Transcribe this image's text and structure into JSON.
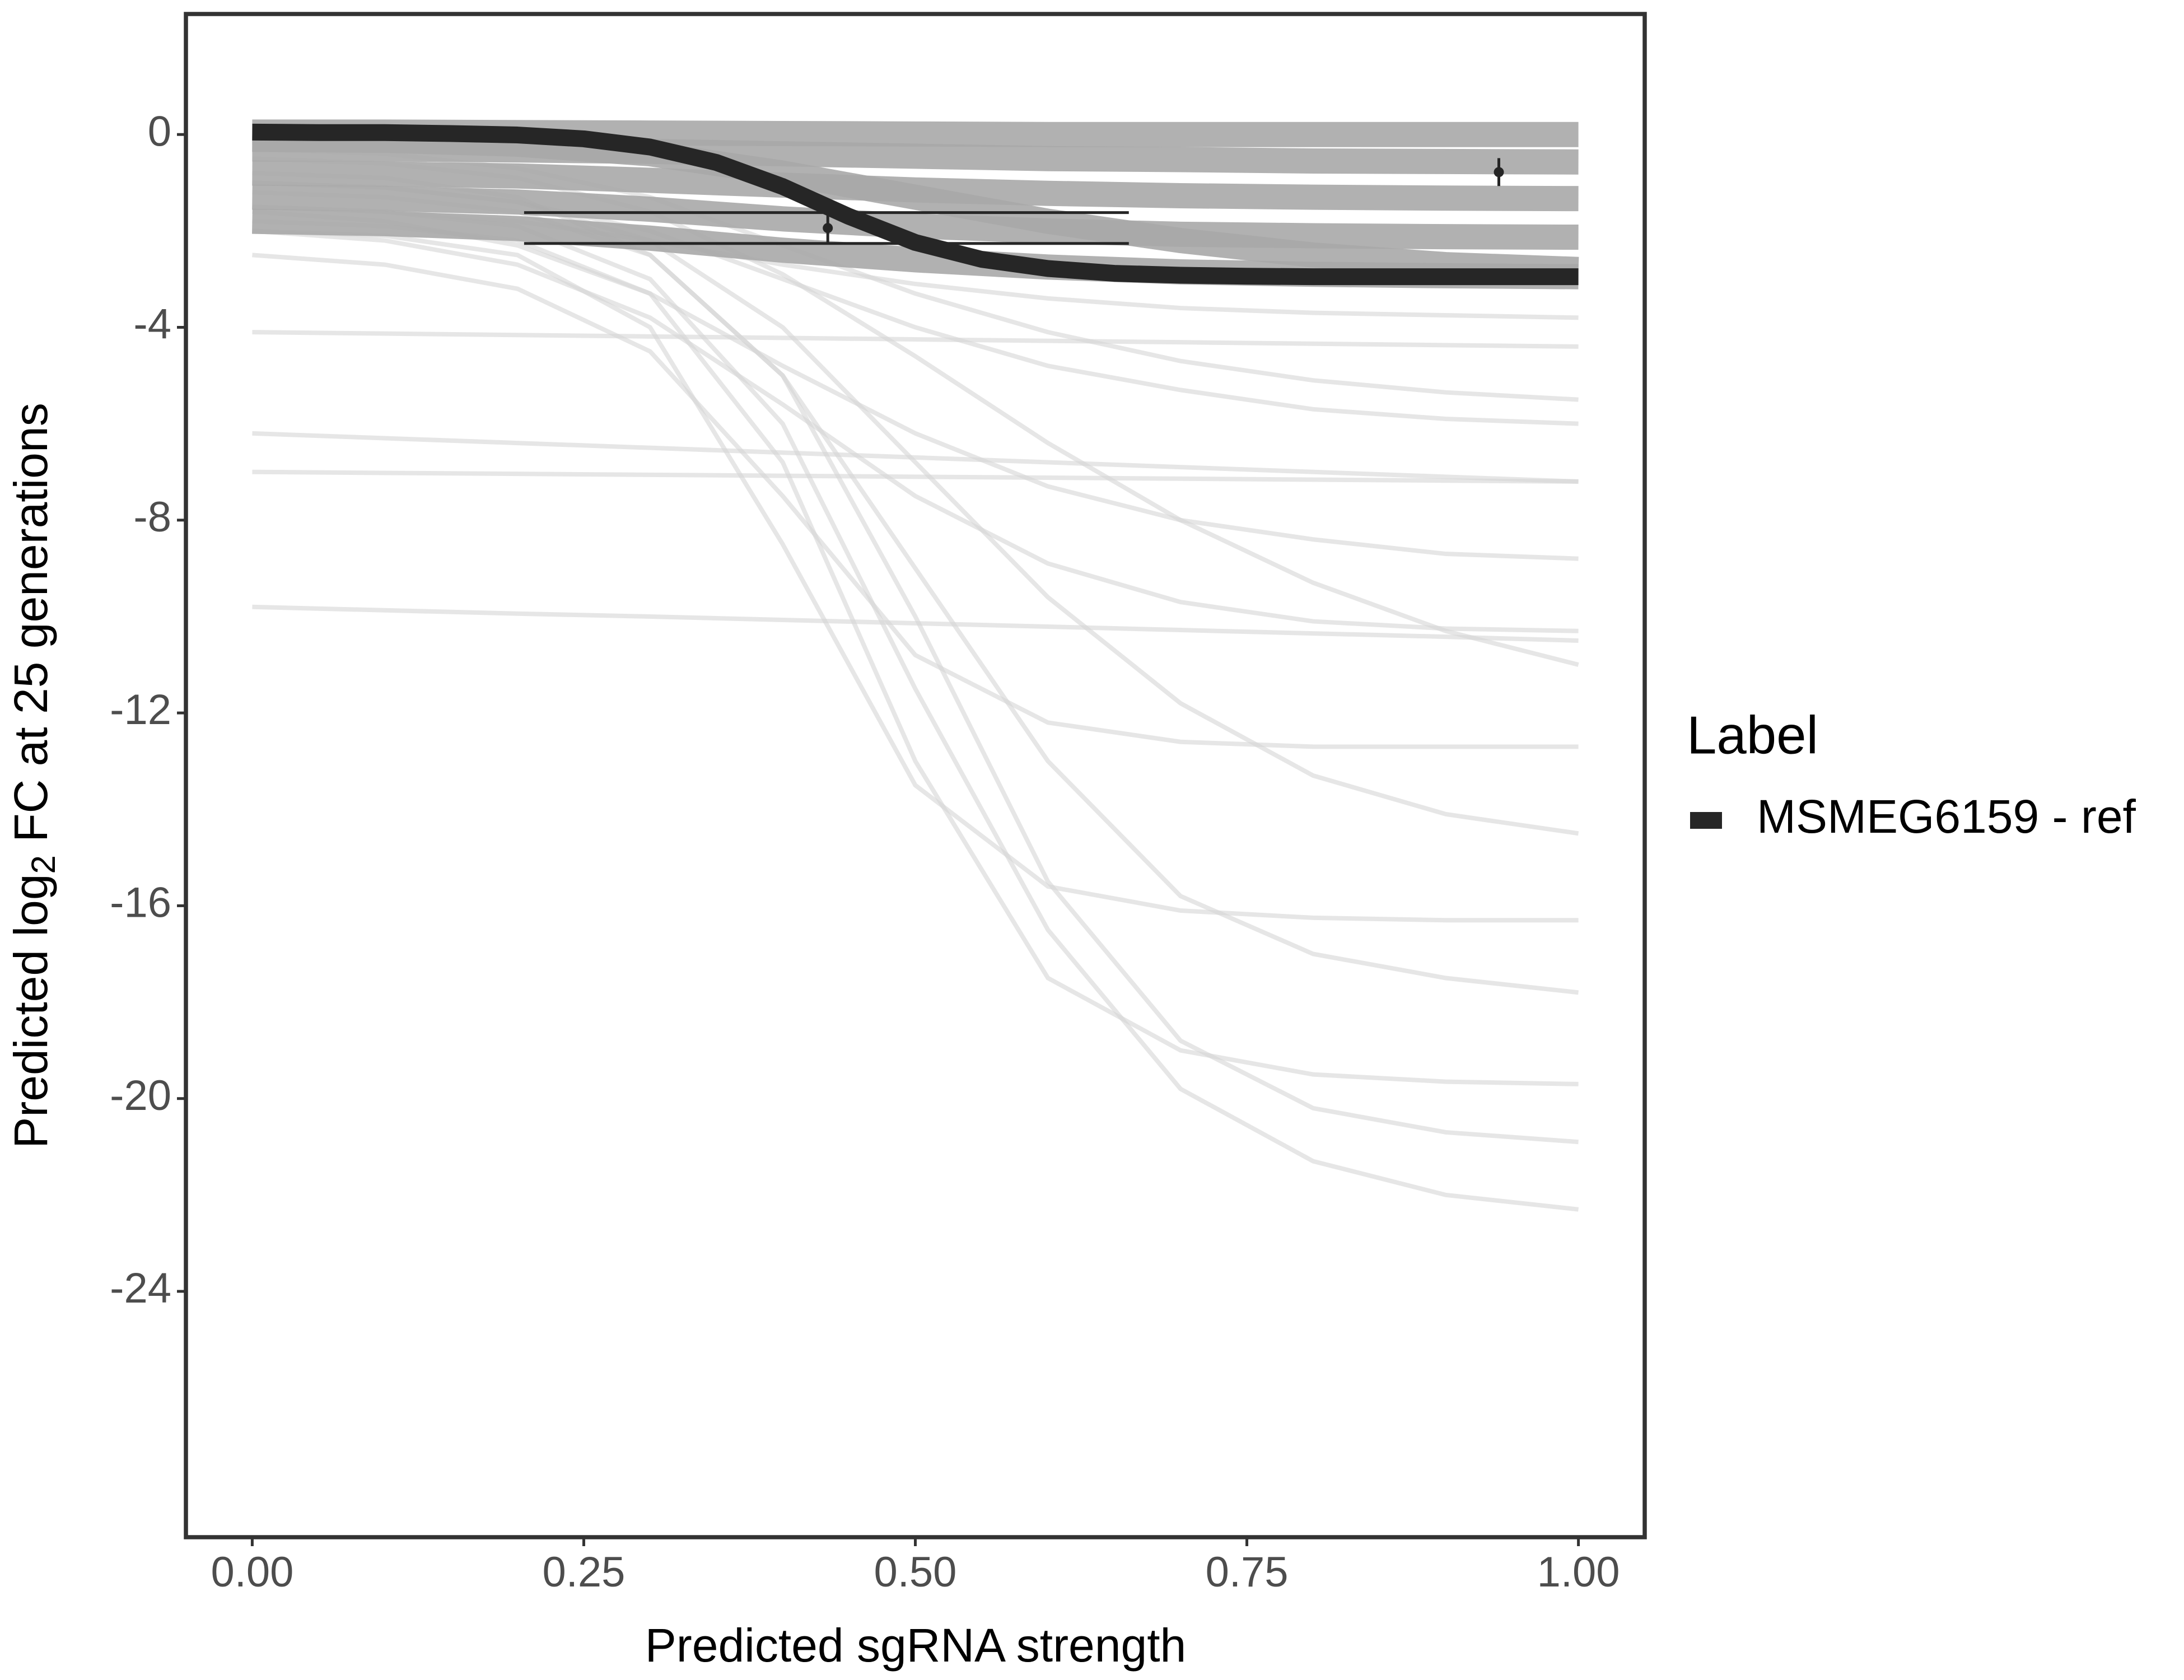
{
  "chart_data": {
    "type": "line",
    "xlabel": "Predicted sgRNA strength",
    "ylabel": [
      "Predicted  log",
      "2",
      " FC at 25 generations"
    ],
    "legend_title": "Label",
    "legend_position": "right",
    "xlim": [
      -0.05,
      1.05
    ],
    "ylim": [
      -29.1,
      2.5
    ],
    "xticks": [
      {
        "value": 0,
        "label": "0.00"
      },
      {
        "value": 0.25,
        "label": "0.25"
      },
      {
        "value": 0.5,
        "label": "0.50"
      },
      {
        "value": 0.75,
        "label": "0.75"
      },
      {
        "value": 1,
        "label": "1.00"
      }
    ],
    "yticks": [
      0,
      -4,
      -8,
      -12,
      -16,
      -20,
      -24
    ],
    "grid": false,
    "series": [
      {
        "name": "MSMEG6159 - ref",
        "color": "#262626",
        "x": [
          0,
          0.05,
          0.1,
          0.15,
          0.2,
          0.25,
          0.3,
          0.35,
          0.4,
          0.45,
          0.5,
          0.55,
          0.6,
          0.65,
          0.7,
          0.75,
          0.8,
          0.85,
          0.9,
          0.95,
          1
        ],
        "values": [
          0.05,
          0.04,
          0.04,
          0.02,
          -0.01,
          -0.09,
          -0.26,
          -0.58,
          -1.08,
          -1.7,
          -2.24,
          -2.59,
          -2.78,
          -2.88,
          -2.92,
          -2.94,
          -2.95,
          -2.95,
          -2.95,
          -2.95,
          -2.95
        ]
      }
    ],
    "points": {
      "color": "#262626",
      "x": [
        0.434,
        0.94
      ],
      "values": [
        -1.94,
        -0.78
      ],
      "ymin": [
        -2.26,
        -1.07
      ],
      "ymax": [
        -1.62,
        -0.49
      ],
      "cap_xmin": [
        0.205,
        0.94
      ],
      "cap_xmax": [
        0.661,
        0.94
      ]
    },
    "band_color": "#a9a9a9",
    "background_color": "#d6d6d6",
    "background_x": [
      0,
      0.1,
      0.2,
      0.3,
      0.4,
      0.5,
      0.6,
      0.7,
      0.8,
      0.9,
      1
    ],
    "band_curves": [
      [
        0.05,
        0.05,
        0.04,
        0.03,
        0.02,
        0.01,
        0,
        0,
        0,
        0,
        0
      ],
      [
        -0.3,
        -0.3,
        -0.32,
        -0.35,
        -0.4,
        -0.45,
        -0.5,
        -0.52,
        -0.55,
        -0.56,
        -0.57
      ],
      [
        -0.8,
        -0.82,
        -0.86,
        -0.95,
        -1.05,
        -1.15,
        -1.22,
        -1.27,
        -1.3,
        -1.32,
        -1.33
      ],
      [
        -1.3,
        -1.33,
        -1.4,
        -1.55,
        -1.75,
        -1.9,
        -2.0,
        -2.07,
        -2.1,
        -2.12,
        -2.13
      ],
      [
        -1.8,
        -1.85,
        -1.95,
        -2.15,
        -2.4,
        -2.6,
        -2.75,
        -2.85,
        -2.9,
        -2.93,
        -2.95
      ],
      [
        -0.1,
        -0.12,
        -0.2,
        -0.4,
        -0.8,
        -1.3,
        -1.8,
        -2.2,
        -2.5,
        -2.7,
        -2.8
      ]
    ],
    "background_curves": [
      [
        -9.8,
        -9.87,
        -9.94,
        -10.0,
        -10.07,
        -10.14,
        -10.21,
        -10.28,
        -10.35,
        -10.42,
        -10.5
      ],
      [
        -1.5,
        -1.6,
        -1.9,
        -3,
        -6,
        -11.5,
        -16.5,
        -19.8,
        -21.3,
        -22,
        -22.3
      ],
      [
        -1.2,
        -1.3,
        -1.6,
        -2.5,
        -5,
        -10,
        -15.5,
        -18.8,
        -20.2,
        -20.7,
        -20.9
      ],
      [
        -1.8,
        -1.9,
        -2.2,
        -3.3,
        -6.8,
        -13,
        -17.5,
        -19,
        -19.5,
        -19.65,
        -19.7
      ],
      [
        -0.8,
        -0.9,
        -1.3,
        -2.5,
        -5,
        -9,
        -13,
        -15.8,
        -17,
        -17.5,
        -17.8
      ],
      [
        -2,
        -2.1,
        -2.5,
        -4,
        -8.5,
        -13.5,
        -15.6,
        -16.1,
        -16.25,
        -16.3,
        -16.3
      ],
      [
        -1,
        -1.1,
        -1.4,
        -2.2,
        -4,
        -6.8,
        -9.6,
        -11.8,
        -13.3,
        -14.1,
        -14.5
      ],
      [
        -2.5,
        -2.7,
        -3.2,
        -4.5,
        -7.5,
        -10.8,
        -12.2,
        -12.6,
        -12.7,
        -12.7,
        -12.7
      ],
      [
        -0.5,
        -0.6,
        -0.9,
        -1.6,
        -2.9,
        -4.6,
        -6.4,
        -8,
        -9.3,
        -10.3,
        -11
      ],
      [
        -1.6,
        -1.8,
        -2.3,
        -3.3,
        -4.8,
        -6.2,
        -7.3,
        -8,
        -8.4,
        -8.7,
        -8.8
      ],
      [
        -7,
        -7.02,
        -7.04,
        -7.06,
        -7.08,
        -7.1,
        -7.12,
        -7.14,
        -7.16,
        -7.18,
        -7.2
      ],
      [
        -6.2,
        -6.3,
        -6.4,
        -6.5,
        -6.6,
        -6.7,
        -6.8,
        -6.9,
        -7.0,
        -7.1,
        -7.2
      ],
      [
        -0.3,
        -0.4,
        -0.7,
        -1.3,
        -2.3,
        -3.3,
        -4.1,
        -4.7,
        -5.1,
        -5.35,
        -5.5
      ],
      [
        -4.1,
        -4.13,
        -4.16,
        -4.19,
        -4.22,
        -4.25,
        -4.28,
        -4.31,
        -4.34,
        -4.37,
        -4.4
      ],
      [
        -1.5,
        -1.6,
        -1.8,
        -2.2,
        -2.7,
        -3.1,
        -3.4,
        -3.6,
        -3.7,
        -3.75,
        -3.8
      ],
      [
        -2,
        -2.2,
        -2.7,
        -3.8,
        -5.6,
        -7.5,
        -8.9,
        -9.7,
        -10.1,
        -10.25,
        -10.3
      ],
      [
        -1,
        -1.1,
        -1.4,
        -2,
        -3,
        -4,
        -4.8,
        -5.3,
        -5.7,
        -5.9,
        -6
      ]
    ]
  }
}
